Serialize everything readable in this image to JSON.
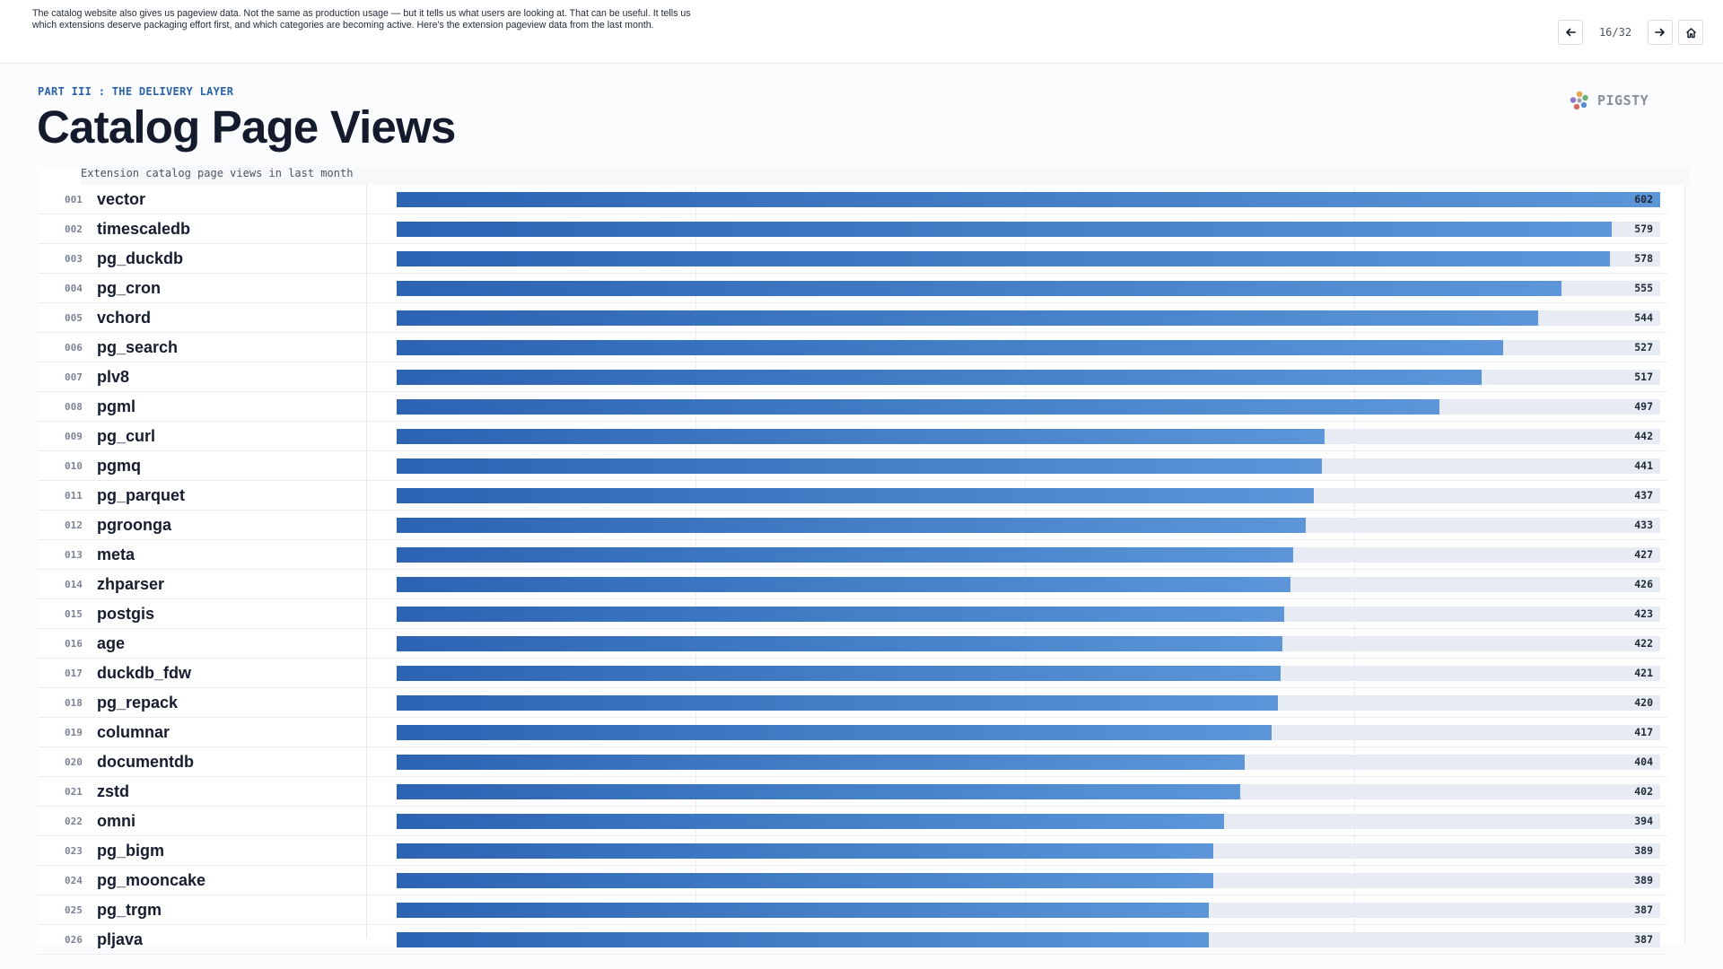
{
  "notes": {
    "line1": "The catalog website also gives us pageview data. Not the same as production usage — but it tells us what users are looking at. That can be useful. It tells us",
    "line2": "which extensions deserve packaging effort first, and which categories are becoming active.    Here's the extension pageview data from the last month."
  },
  "nav": {
    "prev_icon": "arrow-left-icon",
    "counter": "16/32",
    "next_icon": "arrow-right-icon",
    "home_icon": "home-icon"
  },
  "slide": {
    "eyebrow": "PART III : THE DELIVERY LAYER",
    "title": "Catalog Page Views",
    "logo_text": "PIGSTY"
  },
  "colors": {
    "accent": "#2c62aa",
    "bar_start": "#2c63b3",
    "bar_end": "#5c96d9",
    "track": "#e7ecf4"
  },
  "chart_data": {
    "type": "bar",
    "orientation": "horizontal",
    "title": "Extension catalog page views in last month",
    "grid": true,
    "xlim": [
      0,
      602
    ],
    "rows": [
      {
        "rank": "001",
        "name": "vector",
        "value": 602
      },
      {
        "rank": "002",
        "name": "timescaledb",
        "value": 579
      },
      {
        "rank": "003",
        "name": "pg_duckdb",
        "value": 578
      },
      {
        "rank": "004",
        "name": "pg_cron",
        "value": 555
      },
      {
        "rank": "005",
        "name": "vchord",
        "value": 544
      },
      {
        "rank": "006",
        "name": "pg_search",
        "value": 527
      },
      {
        "rank": "007",
        "name": "plv8",
        "value": 517
      },
      {
        "rank": "008",
        "name": "pgml",
        "value": 497
      },
      {
        "rank": "009",
        "name": "pg_curl",
        "value": 442
      },
      {
        "rank": "010",
        "name": "pgmq",
        "value": 441
      },
      {
        "rank": "011",
        "name": "pg_parquet",
        "value": 437
      },
      {
        "rank": "012",
        "name": "pgroonga",
        "value": 433
      },
      {
        "rank": "013",
        "name": "meta",
        "value": 427
      },
      {
        "rank": "014",
        "name": "zhparser",
        "value": 426
      },
      {
        "rank": "015",
        "name": "postgis",
        "value": 423
      },
      {
        "rank": "016",
        "name": "age",
        "value": 422
      },
      {
        "rank": "017",
        "name": "duckdb_fdw",
        "value": 421
      },
      {
        "rank": "018",
        "name": "pg_repack",
        "value": 420
      },
      {
        "rank": "019",
        "name": "columnar",
        "value": 417
      },
      {
        "rank": "020",
        "name": "documentdb",
        "value": 404
      },
      {
        "rank": "021",
        "name": "zstd",
        "value": 402
      },
      {
        "rank": "022",
        "name": "omni",
        "value": 394
      },
      {
        "rank": "023",
        "name": "pg_bigm",
        "value": 389
      },
      {
        "rank": "024",
        "name": "pg_mooncake",
        "value": 389
      },
      {
        "rank": "025",
        "name": "pg_trgm",
        "value": 387
      },
      {
        "rank": "026",
        "name": "pljava",
        "value": 387
      }
    ]
  }
}
